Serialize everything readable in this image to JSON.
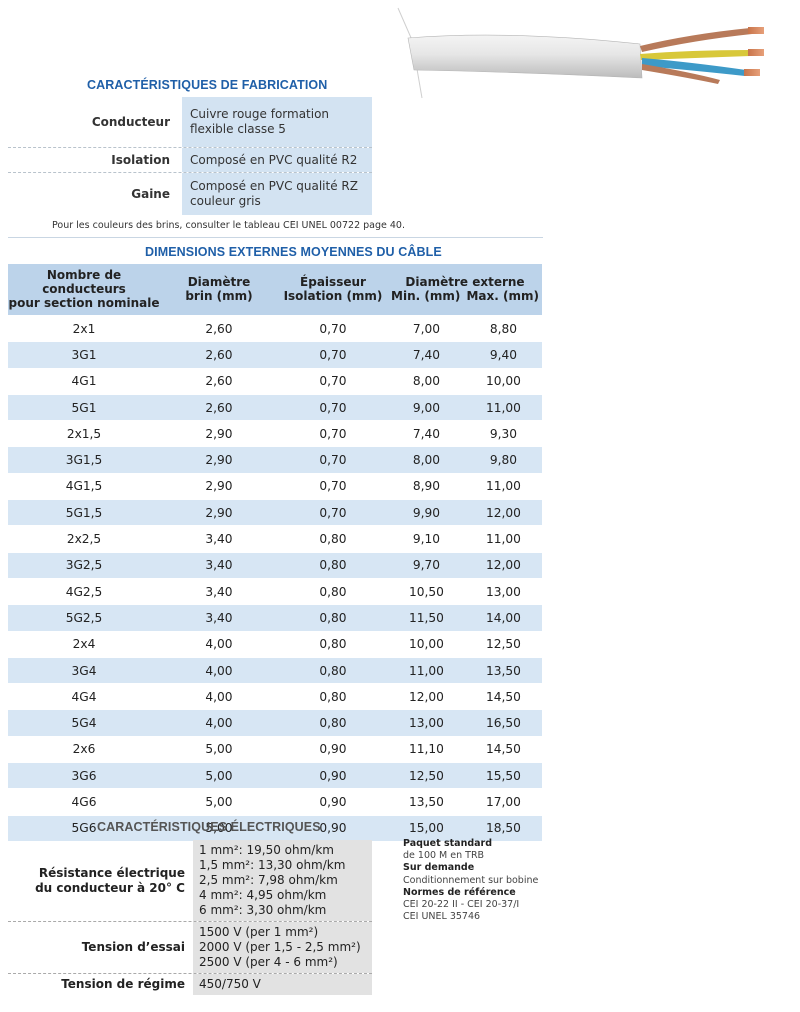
{
  "fabrication": {
    "title": "CARACTÉRISTIQUES DE FABRICATION",
    "rows": [
      {
        "label": "Conducteur",
        "value": "Cuivre rouge formation flexible classe 5"
      },
      {
        "label": "Isolation",
        "value": "Composé en PVC qualité R2"
      },
      {
        "label": "Gaine",
        "value": "Composé en PVC qualité RZ couleur gris"
      }
    ],
    "note": "Pour les couleurs des brins, consulter le tableau CEI UNEL 00722 page 40."
  },
  "dimensions": {
    "title": "DIMENSIONS EXTERNES MOYENNES DU CÂBLE",
    "headers": {
      "col1_line1": "Nombre de conducteurs",
      "col1_line2": "pour section nominale",
      "col2_line1": "Diamètre",
      "col2_line2": "brin (mm)",
      "col3_line1": "Épaisseur",
      "col3_line2": "Isolation (mm)",
      "col45_line1": "Diamètre externe",
      "col4_line2": "Min. (mm)",
      "col5_line2": "Max. (mm)"
    },
    "rows": [
      [
        "2x1",
        "2,60",
        "0,70",
        "7,00",
        "8,80"
      ],
      [
        "3G1",
        "2,60",
        "0,70",
        "7,40",
        "9,40"
      ],
      [
        "4G1",
        "2,60",
        "0,70",
        "8,00",
        "10,00"
      ],
      [
        "5G1",
        "2,60",
        "0,70",
        "9,00",
        "11,00"
      ],
      [
        "2x1,5",
        "2,90",
        "0,70",
        "7,40",
        "9,30"
      ],
      [
        "3G1,5",
        "2,90",
        "0,70",
        "8,00",
        "9,80"
      ],
      [
        "4G1,5",
        "2,90",
        "0,70",
        "8,90",
        "11,00"
      ],
      [
        "5G1,5",
        "2,90",
        "0,70",
        "9,90",
        "12,00"
      ],
      [
        "2x2,5",
        "3,40",
        "0,80",
        "9,10",
        "11,00"
      ],
      [
        "3G2,5",
        "3,40",
        "0,80",
        "9,70",
        "12,00"
      ],
      [
        "4G2,5",
        "3,40",
        "0,80",
        "10,50",
        "13,00"
      ],
      [
        "5G2,5",
        "3,40",
        "0,80",
        "11,50",
        "14,00"
      ],
      [
        "2x4",
        "4,00",
        "0,80",
        "10,00",
        "12,50"
      ],
      [
        "3G4",
        "4,00",
        "0,80",
        "11,00",
        "13,50"
      ],
      [
        "4G4",
        "4,00",
        "0,80",
        "12,00",
        "14,50"
      ],
      [
        "5G4",
        "4,00",
        "0,80",
        "13,00",
        "16,50"
      ],
      [
        "2x6",
        "5,00",
        "0,90",
        "11,10",
        "14,50"
      ],
      [
        "3G6",
        "5,00",
        "0,90",
        "12,50",
        "15,50"
      ],
      [
        "4G6",
        "5,00",
        "0,90",
        "13,50",
        "17,00"
      ],
      [
        "5G6",
        "5,00",
        "0,90",
        "15,00",
        "18,50"
      ]
    ]
  },
  "electrical": {
    "title": "CARACTÉRISTIQUES ÉLECTRIQUES",
    "resistance_label_1": "Résistance électrique",
    "resistance_label_2": "du conducteur à 20° C",
    "resistance_values": [
      "1 mm²: 19,50  ohm/km",
      "1,5 mm²: 13,30 ohm/km",
      "2,5 mm²: 7,98 ohm/km",
      "4 mm²: 4,95 ohm/km",
      "6 mm²: 3,30 ohm/km"
    ],
    "test_label": "Tension d’essai",
    "test_values": [
      "1500 V (per 1 mm²)",
      "2000 V (per 1,5 - 2,5 mm²)",
      "2500 V (per 4 - 6 mm²)"
    ],
    "operating_label": "Tension de régime",
    "operating_value": "450/750 V"
  },
  "side_info": {
    "packaging_title": "Paquet standard",
    "packaging_value": "de 100 M en TRB",
    "demand_title": "Sur demande",
    "demand_value": "Conditionnement sur bobine",
    "norms_title": "Normes de référence",
    "norms_line1": "CEI 20-22 II - CEI 20-37/I",
    "norms_line2": "CEI UNEL 35746"
  },
  "colors": {
    "accent_blue": "#1f5fa8",
    "light_blue": "#d3e3f2",
    "header_blue": "#bcd3ea",
    "grey": "#e2e2e2"
  }
}
